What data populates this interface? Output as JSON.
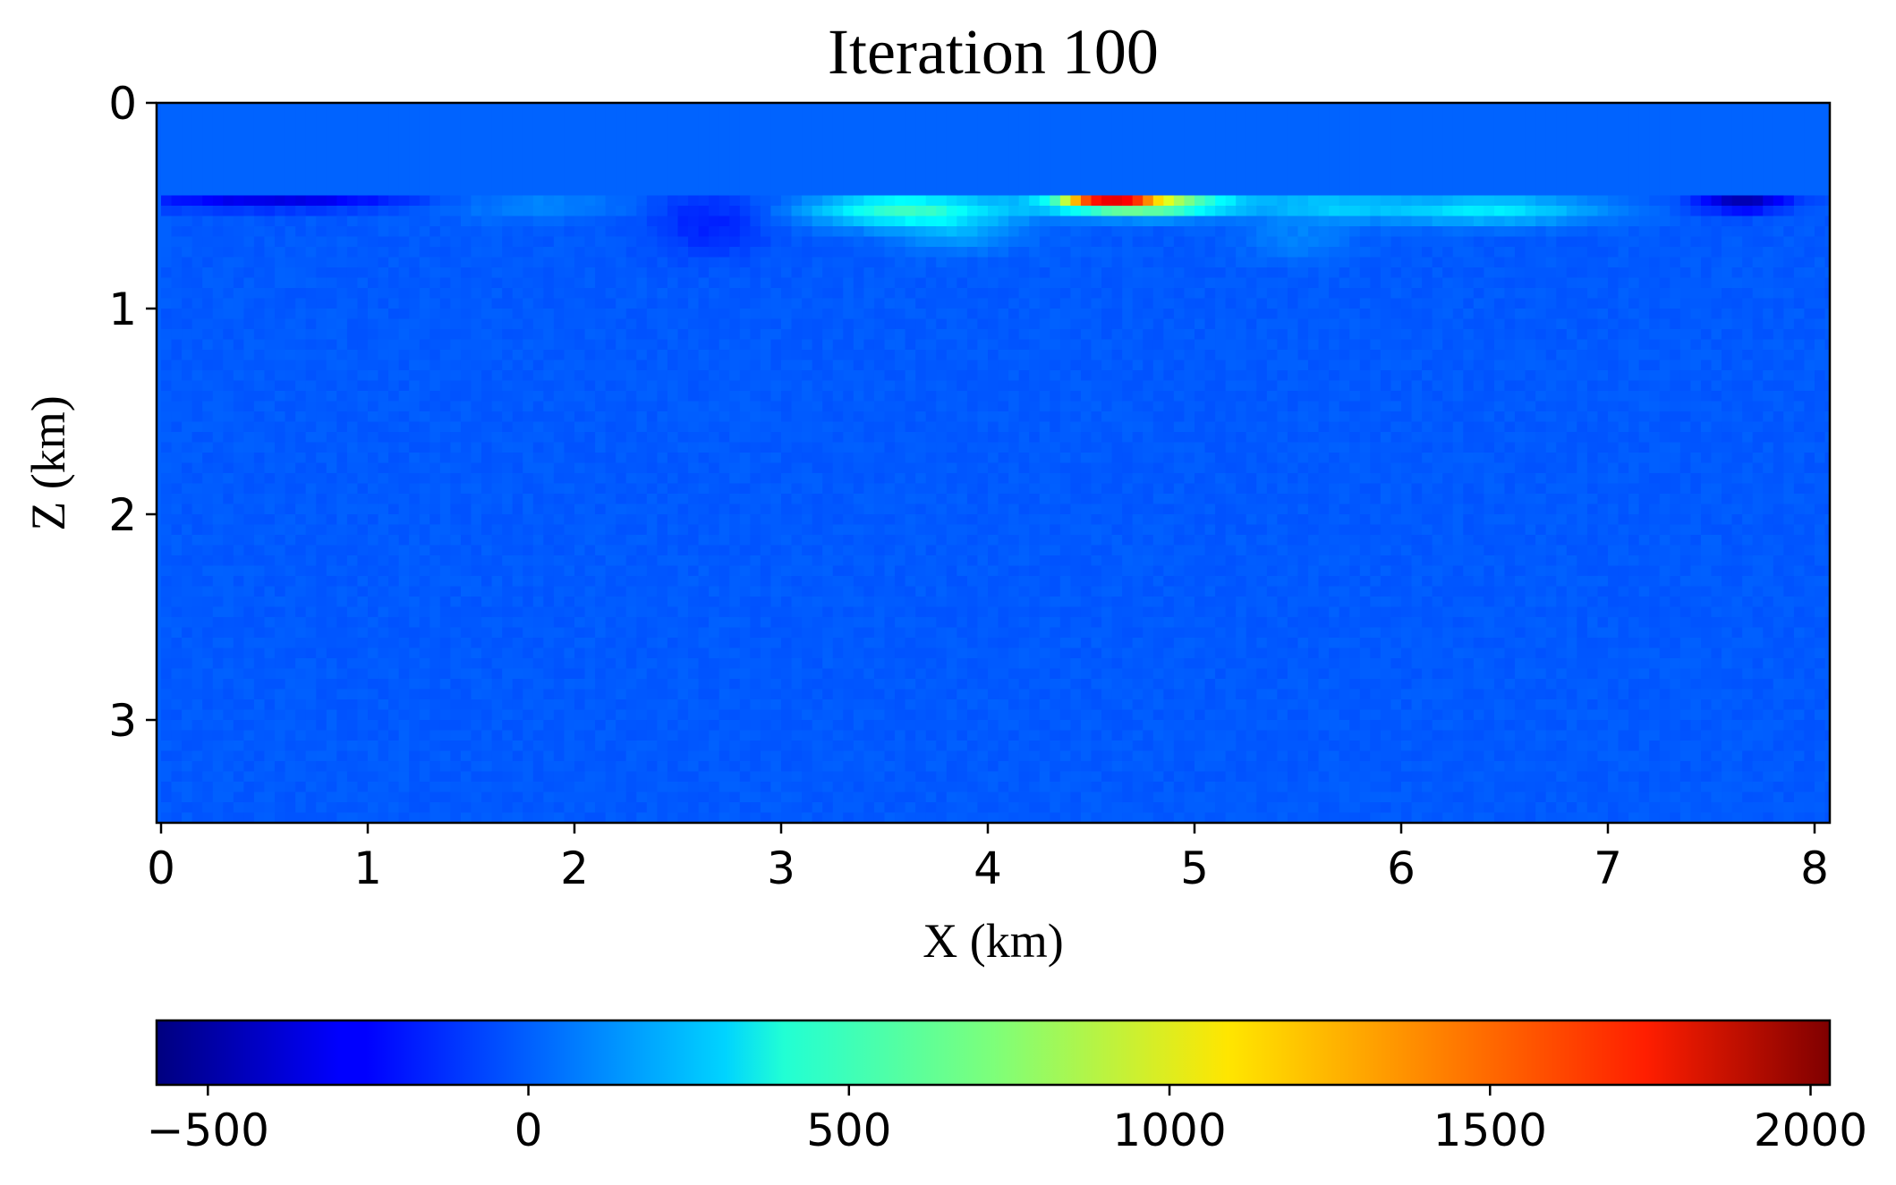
{
  "chart_data": {
    "type": "heatmap",
    "title": "Iteration 100",
    "xlabel": "X (km)",
    "ylabel": "Z (km)",
    "xlim": [
      0,
      8.1
    ],
    "ylim": [
      3.5,
      0
    ],
    "y_inverted": true,
    "grid": false,
    "x_ticks": [
      0,
      1,
      2,
      3,
      4,
      5,
      6,
      7,
      8
    ],
    "x_tick_labels": [
      "0",
      "1",
      "2",
      "3",
      "4",
      "5",
      "6",
      "7",
      "8"
    ],
    "y_ticks": [
      0,
      1,
      2,
      3
    ],
    "y_tick_labels": [
      "0",
      "1",
      "2",
      "3"
    ],
    "colormap": "jet",
    "colorbar": {
      "orientation": "horizontal",
      "placement": "bottom",
      "vmin": -580,
      "vmax": 2030,
      "ticks": [
        -500,
        0,
        500,
        1000,
        1500,
        2000
      ],
      "tick_labels": [
        "−500",
        "0",
        "500",
        "1000",
        "1500",
        "2000"
      ]
    },
    "background_value": 0,
    "layer_top_depth_km": 0.43,
    "anomalies": [
      {
        "x_center": 0.55,
        "z_center": 0.47,
        "x_width": 0.65,
        "z_width": 0.05,
        "value": -300
      },
      {
        "x_center": 2.65,
        "z_center": 0.58,
        "x_width": 0.28,
        "z_width": 0.16,
        "value": -150
      },
      {
        "x_center": 7.65,
        "z_center": 0.47,
        "x_width": 0.22,
        "z_width": 0.06,
        "value": -430
      },
      {
        "x_center": 1.8,
        "z_center": 0.5,
        "x_width": 0.45,
        "z_width": 0.07,
        "value": 120
      },
      {
        "x_center": 3.6,
        "z_center": 0.52,
        "x_width": 0.45,
        "z_width": 0.08,
        "value": 560
      },
      {
        "x_center": 3.85,
        "z_center": 0.64,
        "x_width": 0.3,
        "z_width": 0.09,
        "value": 170
      },
      {
        "x_center": 4.75,
        "z_center": 0.49,
        "x_width": 0.45,
        "z_width": 0.06,
        "value": 900
      },
      {
        "x_center": 4.6,
        "z_center": 0.455,
        "x_width": 0.22,
        "z_width": 0.04,
        "value": 1300
      },
      {
        "x_center": 4.45,
        "z_center": 0.45,
        "x_width": 0.09,
        "z_width": 0.025,
        "value": 600
      },
      {
        "x_center": 5.65,
        "z_center": 0.5,
        "x_width": 0.3,
        "z_width": 0.06,
        "value": 250
      },
      {
        "x_center": 6.4,
        "z_center": 0.52,
        "x_width": 0.55,
        "z_width": 0.07,
        "value": 380
      },
      {
        "x_center": 5.5,
        "z_center": 0.66,
        "x_width": 0.25,
        "z_width": 0.1,
        "value": 110
      }
    ]
  }
}
